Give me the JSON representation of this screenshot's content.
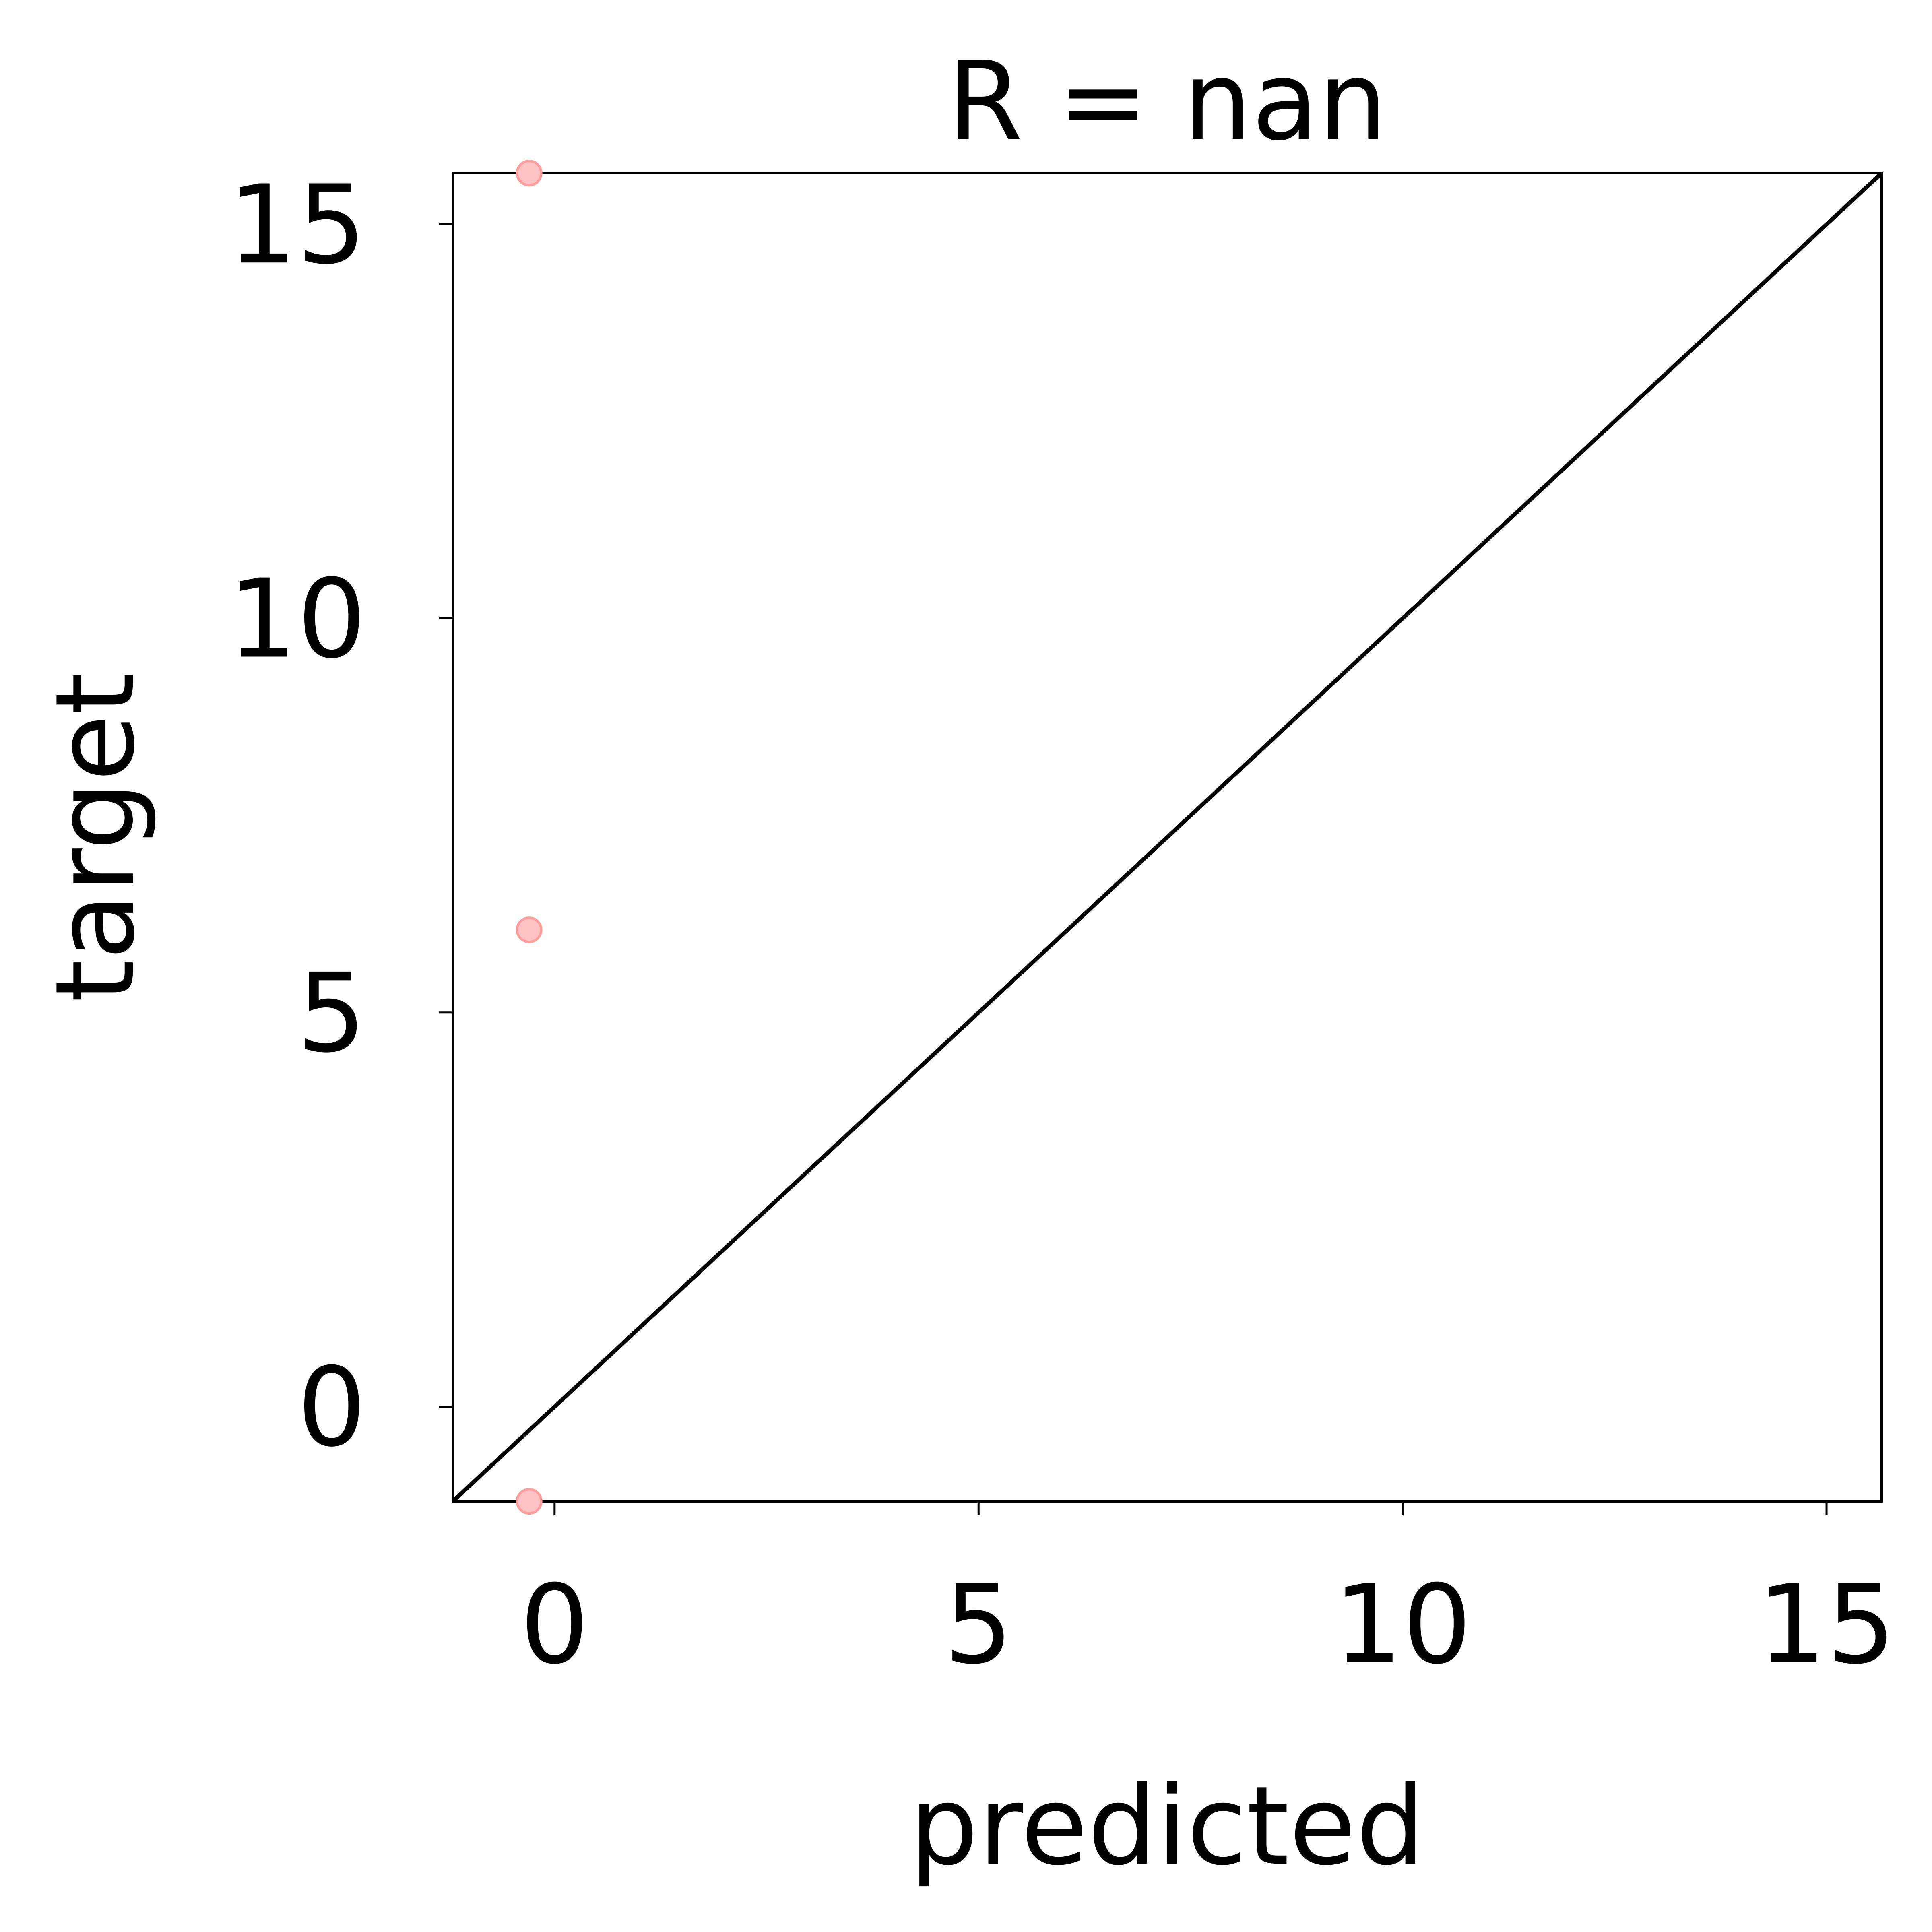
{
  "chart_data": {
    "type": "scatter",
    "title": "R = nan",
    "xlabel": "predicted",
    "ylabel": "target",
    "xlim": [
      -1.2,
      15.65
    ],
    "ylim": [
      -1.2,
      15.65
    ],
    "x_ticks": [
      0,
      5,
      10,
      15
    ],
    "y_ticks": [
      0,
      5,
      10,
      15
    ],
    "x_tick_labels": [
      "0",
      "5",
      "10",
      "15"
    ],
    "y_tick_labels": [
      "0",
      "5",
      "10",
      "15"
    ],
    "grid": false,
    "points": [
      {
        "x": -0.3,
        "y": 15.65
      },
      {
        "x": -0.3,
        "y": 6.05
      },
      {
        "x": -0.3,
        "y": -1.2
      }
    ],
    "reference_line": {
      "x": [
        -1.2,
        15.65
      ],
      "y": [
        -1.2,
        15.65
      ]
    },
    "colors": {
      "point_fill": "#ffc2c2",
      "point_edge": "#ff9c9c",
      "line": "#000000",
      "axes": "#000000"
    }
  }
}
